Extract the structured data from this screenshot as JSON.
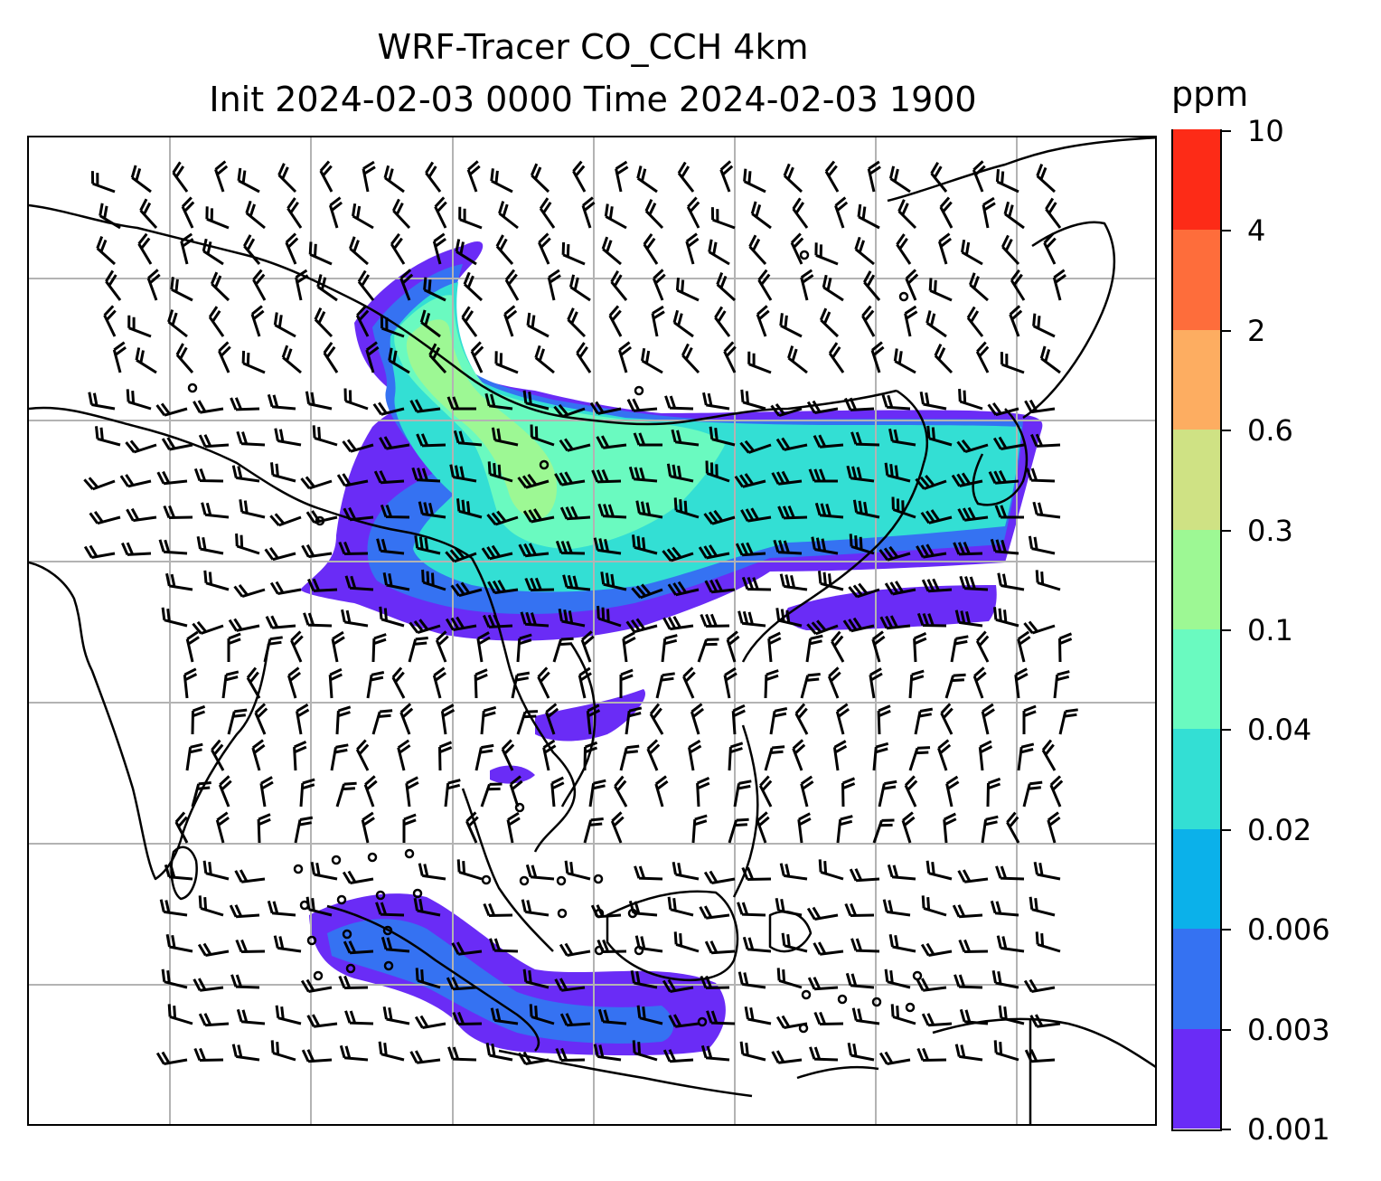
{
  "title": {
    "line1": "WRF-Tracer CO_CCH 4km",
    "line2": "Init 2024-02-03 0000 Time 2024-02-03 1900"
  },
  "colorbar": {
    "unit": "ppm",
    "levels": [
      "0.001",
      "0.003",
      "0.006",
      "0.02",
      "0.04",
      "0.1",
      "0.3",
      "0.6",
      "2",
      "4",
      "10"
    ],
    "colors": [
      "#6a2cf6",
      "#3572f2",
      "#0bb1ea",
      "#33dfd4",
      "#6afac0",
      "#9df894",
      "#cfe284",
      "#fdad61",
      "#fe6d3b",
      "#fd2b17"
    ]
  },
  "map": {
    "gridlines": true,
    "coastline_color": "#000000",
    "gridline_color": "#b3b3b3"
  }
}
